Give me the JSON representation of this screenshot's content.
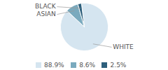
{
  "chart_data": {
    "type": "pie",
    "categories": [
      "WHITE",
      "ASIAN",
      "BLACK"
    ],
    "values": [
      88.9,
      8.6,
      2.5
    ],
    "value_labels": [
      "88.9%",
      "8.6%",
      "2.5%"
    ],
    "colors": [
      "#d5e5f0",
      "#7aaabe",
      "#2d5f7c"
    ],
    "legend": "bottom"
  }
}
